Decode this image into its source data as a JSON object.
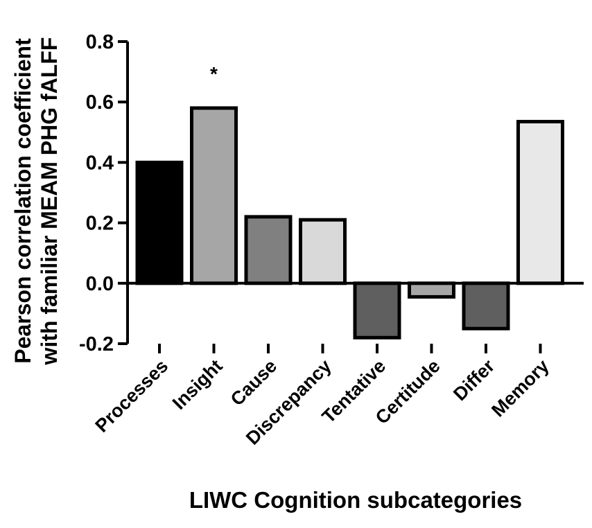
{
  "chart_data": {
    "type": "bar",
    "title": "",
    "xlabel": "LIWC Cognition subcategories",
    "ylabel_lines": [
      "Pearson correlation coefficient",
      "with familiar MEAM PHG fALFF"
    ],
    "ylim": [
      -0.2,
      0.8
    ],
    "yticks": [
      "-0.2",
      "0.0",
      "0.2",
      "0.4",
      "0.6",
      "0.8"
    ],
    "ytick_values": [
      -0.2,
      0.0,
      0.2,
      0.4,
      0.6,
      0.8
    ],
    "categories": [
      "Processes",
      "Insight",
      "Cause",
      "Discrepancy",
      "Tentative",
      "Certitude",
      "Differ",
      "Memory"
    ],
    "values": [
      0.4,
      0.58,
      0.22,
      0.21,
      -0.18,
      -0.045,
      -0.15,
      0.535
    ],
    "fill_colors": [
      "#000000",
      "#a6a6a6",
      "#808080",
      "#d9d9d9",
      "#5f5f5f",
      "#a6a6a6",
      "#5f5f5f",
      "#e8e8e8"
    ],
    "annotations": [
      {
        "category": "Insight",
        "text": "*"
      }
    ],
    "grid": false,
    "legend": "none"
  }
}
